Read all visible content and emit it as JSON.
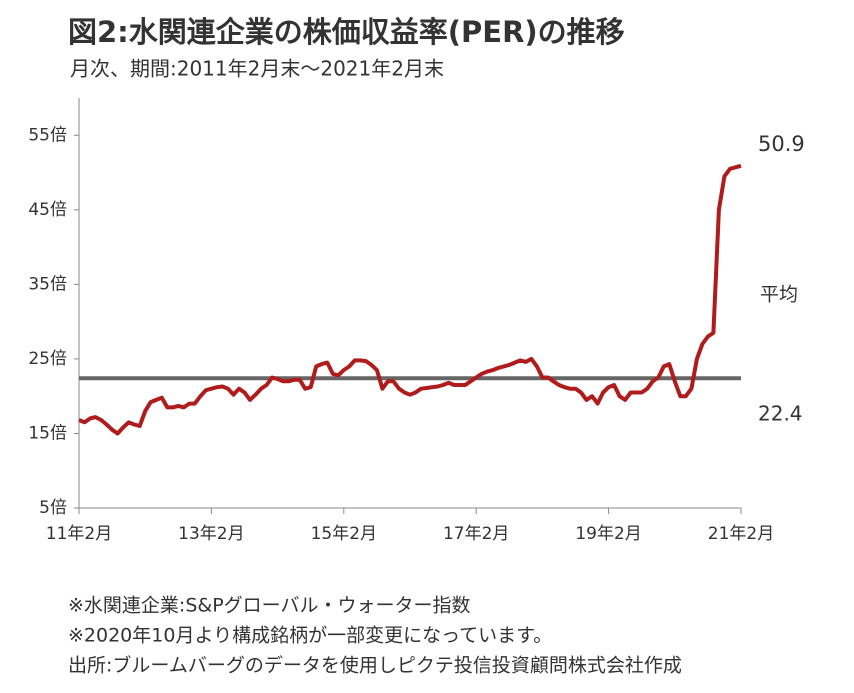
{
  "chart_data": {
    "type": "line",
    "title": "図2:水関連企業の株価収益率(PER)の推移",
    "subtitle": "月次、期間:2011年2月末～2021年2月末",
    "categories": [
      "11年2月",
      null,
      null,
      null,
      null,
      null,
      null,
      null,
      null,
      null,
      null,
      null,
      null,
      null,
      null,
      null,
      null,
      null,
      null,
      null,
      null,
      null,
      null,
      null,
      "13年2月",
      null,
      null,
      null,
      null,
      null,
      null,
      null,
      null,
      null,
      null,
      null,
      null,
      null,
      null,
      null,
      null,
      null,
      null,
      null,
      null,
      null,
      null,
      null,
      "15年2月",
      null,
      null,
      null,
      null,
      null,
      null,
      null,
      null,
      null,
      null,
      null,
      null,
      null,
      null,
      null,
      null,
      null,
      null,
      null,
      null,
      null,
      null,
      null,
      "17年2月",
      null,
      null,
      null,
      null,
      null,
      null,
      null,
      null,
      null,
      null,
      null,
      null,
      null,
      null,
      null,
      null,
      null,
      null,
      null,
      null,
      null,
      null,
      null,
      "19年2月",
      null,
      null,
      null,
      null,
      null,
      null,
      null,
      null,
      null,
      null,
      null,
      null,
      null,
      null,
      null,
      null,
      null,
      null,
      null,
      null,
      null,
      null,
      null,
      "21年2月"
    ],
    "series": [
      {
        "color": "#b01c1c",
        "values": [
          16.8,
          16.5,
          17.0,
          17.2,
          16.8,
          16.2,
          15.5,
          15.0,
          15.8,
          16.5,
          16.2,
          16.0,
          18.0,
          19.2,
          19.5,
          19.8,
          18.5,
          18.5,
          18.7,
          18.5,
          19.0,
          19.0,
          20.0,
          20.8,
          21.0,
          21.2,
          21.3,
          21.0,
          20.2,
          21.0,
          20.5,
          19.5,
          20.2,
          21.0,
          21.5,
          22.5,
          22.3,
          22.0,
          22.0,
          22.2,
          22.2,
          21.0,
          21.2,
          24.0,
          24.3,
          24.5,
          23.0,
          22.8,
          23.5,
          24.0,
          24.8,
          24.8,
          24.7,
          24.2,
          23.5,
          21.0,
          22.0,
          22.0,
          21.0,
          20.5,
          20.2,
          20.5,
          21.0,
          21.1,
          21.2,
          21.3,
          21.5,
          21.8,
          21.5,
          21.5,
          21.5,
          22.0,
          22.5,
          23.0,
          23.3,
          23.5,
          23.8,
          24.0,
          24.2,
          24.5,
          24.8,
          24.6,
          25.0,
          24.0,
          22.5,
          22.5,
          22.0,
          21.5,
          21.2,
          21.0,
          21.0,
          20.5,
          19.5,
          20.0,
          19.0,
          20.5,
          21.2,
          21.5,
          20.0,
          19.5,
          20.5,
          20.5,
          20.5,
          21.0,
          22.0,
          22.5,
          24.0,
          24.3,
          22.0,
          20.0,
          20.0,
          21.0,
          25.0,
          27.0,
          28.0,
          28.5,
          45.0,
          49.5,
          50.5,
          50.7,
          50.9
        ]
      }
    ],
    "average": {
      "label": "平均",
      "value": 22.4,
      "color": "#666666"
    },
    "ylim": [
      5,
      60
    ],
    "yticks": [
      {
        "value": 5,
        "label": "5倍"
      },
      {
        "value": 15,
        "label": "15倍"
      },
      {
        "value": 25,
        "label": "25倍"
      },
      {
        "value": 35,
        "label": "35倍"
      },
      {
        "value": 45,
        "label": "45倍"
      },
      {
        "value": 55,
        "label": "55倍"
      }
    ],
    "grid": false,
    "notes": [
      "※水関連企業:S&Pグローバル・ウォーター指数",
      "※2020年10月より構成銘柄が一部変更になっています。",
      "出所:ブルームバーグのデータを使用しピクテ投信投資顧問株式会社作成"
    ]
  }
}
